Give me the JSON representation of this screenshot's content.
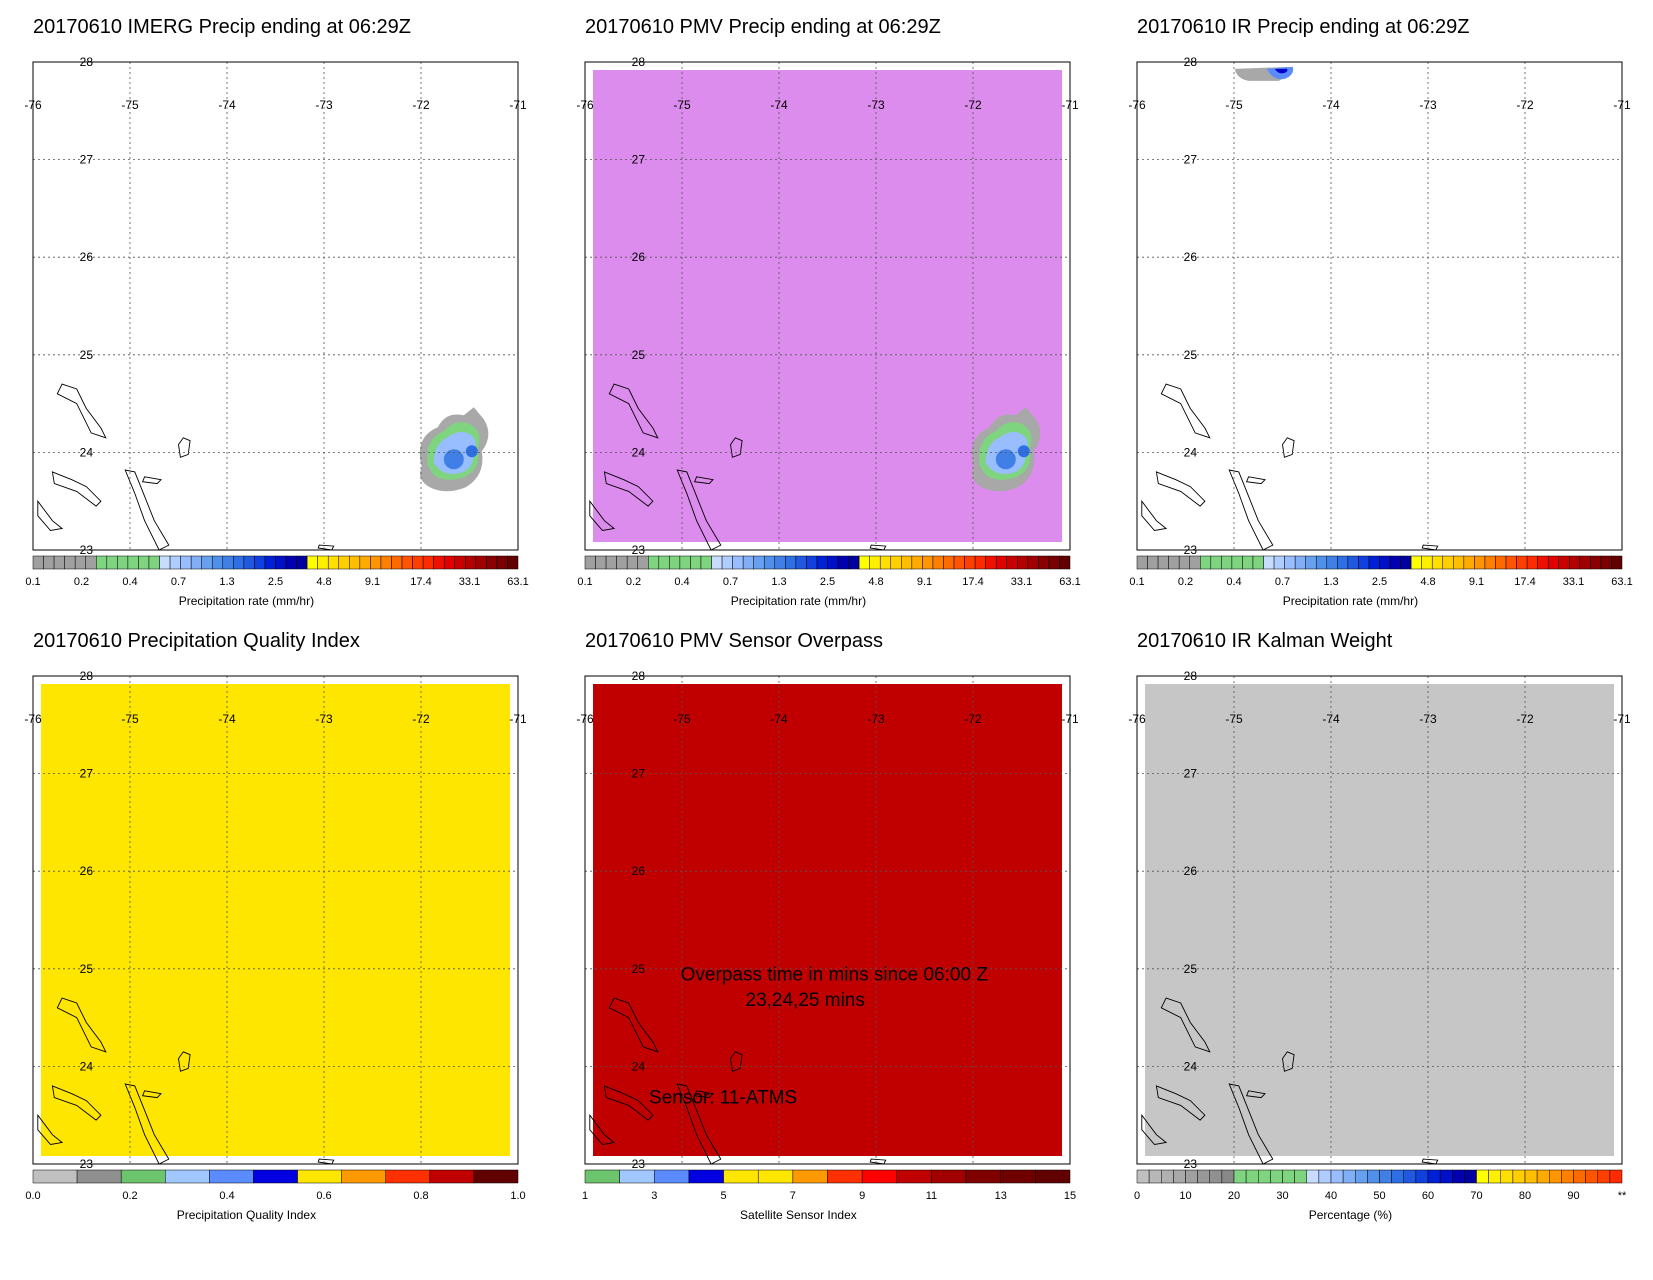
{
  "map": {
    "lon_ticks": [
      -76,
      -75,
      -74,
      -73,
      -72,
      -71
    ],
    "lat_ticks": [
      28,
      27,
      26,
      25,
      24,
      23
    ],
    "lon_range": [
      -76,
      -71
    ],
    "lat_range": [
      23,
      28
    ]
  },
  "panels": [
    {
      "title": "20170610 IMERG Precip ending at 06:29Z",
      "fill": "none",
      "precip_blob": {
        "lon": -71.6,
        "lat": 23.95
      },
      "colorbar": {
        "label": "Precipitation rate (mm/hr)",
        "tick_labels": [
          "0.1",
          "0.2",
          "0.4",
          "0.7",
          "1.3",
          "2.5",
          "4.8",
          "9.1",
          "17.4",
          "33.1",
          "63.1"
        ],
        "colors": [
          "#a0a0a0",
          "#a0a0a0",
          "#a0a0a0",
          "#a0a0a0",
          "#a0a0a0",
          "#a0a0a0",
          "#7fd47f",
          "#7fd47f",
          "#7fd47f",
          "#7fd47f",
          "#7fd47f",
          "#7fd47f",
          "#c8dcff",
          "#b0cdff",
          "#98beff",
          "#80aff5",
          "#68a0f0",
          "#5090eb",
          "#3f7fe6",
          "#2f6fe6",
          "#2058e0",
          "#1040e0",
          "#0020d8",
          "#0010c8",
          "#0000b0",
          "#0000a0",
          "#ffff00",
          "#ffef00",
          "#ffdf00",
          "#ffcf00",
          "#ffbf00",
          "#ffaa00",
          "#ff9500",
          "#ff8000",
          "#ff6a00",
          "#ff5500",
          "#ff3f00",
          "#ff2a00",
          "#f01000",
          "#e00000",
          "#c80000",
          "#b40000",
          "#a00000",
          "#8a0000",
          "#780000",
          "#600000"
        ]
      }
    },
    {
      "title": "20170610 PMV Precip ending at 06:29Z",
      "fill": "#dc8cec",
      "precip_blob": {
        "lon": -71.6,
        "lat": 23.95
      },
      "colorbar": {
        "label": "Precipitation rate (mm/hr)",
        "tick_labels": [
          "0.1",
          "0.2",
          "0.4",
          "0.7",
          "1.3",
          "2.5",
          "4.8",
          "9.1",
          "17.4",
          "33.1",
          "63.1"
        ],
        "colors": [
          "#a0a0a0",
          "#a0a0a0",
          "#a0a0a0",
          "#a0a0a0",
          "#a0a0a0",
          "#a0a0a0",
          "#7fd47f",
          "#7fd47f",
          "#7fd47f",
          "#7fd47f",
          "#7fd47f",
          "#7fd47f",
          "#c8dcff",
          "#b0cdff",
          "#98beff",
          "#80aff5",
          "#68a0f0",
          "#5090eb",
          "#3f7fe6",
          "#2f6fe6",
          "#2058e0",
          "#1040e0",
          "#0020d8",
          "#0010c8",
          "#0000b0",
          "#0000a0",
          "#ffff00",
          "#ffef00",
          "#ffdf00",
          "#ffcf00",
          "#ffbf00",
          "#ffaa00",
          "#ff9500",
          "#ff8000",
          "#ff6a00",
          "#ff5500",
          "#ff3f00",
          "#ff2a00",
          "#f01000",
          "#e00000",
          "#c80000",
          "#b40000",
          "#a00000",
          "#8a0000",
          "#780000",
          "#600000"
        ]
      }
    },
    {
      "title": "20170610 IR Precip ending at 06:29Z",
      "fill": "none",
      "precip_blob_top": {
        "lon": -74.6,
        "lat": 27.95
      },
      "colorbar": {
        "label": "Precipitation rate (mm/hr)",
        "tick_labels": [
          "0.1",
          "0.2",
          "0.4",
          "0.7",
          "1.3",
          "2.5",
          "4.8",
          "9.1",
          "17.4",
          "33.1",
          "63.1"
        ],
        "colors": [
          "#a0a0a0",
          "#a0a0a0",
          "#a0a0a0",
          "#a0a0a0",
          "#a0a0a0",
          "#a0a0a0",
          "#7fd47f",
          "#7fd47f",
          "#7fd47f",
          "#7fd47f",
          "#7fd47f",
          "#7fd47f",
          "#c8dcff",
          "#b0cdff",
          "#98beff",
          "#80aff5",
          "#68a0f0",
          "#5090eb",
          "#3f7fe6",
          "#2f6fe6",
          "#2058e0",
          "#1040e0",
          "#0020d8",
          "#0010c8",
          "#0000b0",
          "#0000a0",
          "#ffff00",
          "#ffef00",
          "#ffdf00",
          "#ffcf00",
          "#ffbf00",
          "#ffaa00",
          "#ff9500",
          "#ff8000",
          "#ff6a00",
          "#ff5500",
          "#ff3f00",
          "#ff2a00",
          "#f01000",
          "#e00000",
          "#c80000",
          "#b40000",
          "#a00000",
          "#8a0000",
          "#780000",
          "#600000"
        ]
      }
    },
    {
      "title": "20170610 Precipitation Quality Index",
      "fill": "#ffe600",
      "colorbar": {
        "label": "Precipitation Quality Index",
        "tick_labels": [
          "0.0",
          "0.2",
          "0.4",
          "0.6",
          "0.8",
          "1.0"
        ],
        "colors": [
          "#c0c0c0",
          "#909090",
          "#6cc46c",
          "#a0c8ff",
          "#5a8cff",
          "#0000e0",
          "#ffe600",
          "#ff9900",
          "#ff3000",
          "#c00000",
          "#600000"
        ]
      }
    },
    {
      "title": "20170610 PMV Sensor Overpass",
      "fill": "#c00000",
      "annotation": {
        "line1": "Overpass time in mins since 06:00 Z",
        "line2": "23,24,25 mins",
        "line3": "Sensor:  11-ATMS"
      },
      "colorbar": {
        "label": "Satellite Sensor Index",
        "tick_labels": [
          "1",
          "3",
          "5",
          "7",
          "9",
          "11",
          "13",
          "15"
        ],
        "colors": [
          "#6cc46c",
          "#a0c8ff",
          "#5a8cff",
          "#0000e0",
          "#ffe600",
          "#ffe600",
          "#ff9900",
          "#ff3000",
          "#ff0000",
          "#c00000",
          "#a00000",
          "#800000",
          "#700000",
          "#600000"
        ]
      }
    },
    {
      "title": "20170610 IR Kalman Weight",
      "fill": "#c6c6c6",
      "colorbar": {
        "label": "Percentage (%)",
        "tick_labels": [
          "0",
          "10",
          "20",
          "30",
          "40",
          "50",
          "60",
          "70",
          "80",
          "90",
          "**"
        ],
        "colors": [
          "#c0c0c0",
          "#b8b8b8",
          "#b0b0b0",
          "#a8a8a8",
          "#a0a0a0",
          "#989898",
          "#909090",
          "#888888",
          "#7fd47f",
          "#7fd47f",
          "#7fd47f",
          "#7fd47f",
          "#7fd47f",
          "#7fd47f",
          "#c8dcff",
          "#b0cdff",
          "#98beff",
          "#80aff5",
          "#68a0f0",
          "#5090eb",
          "#3f7fe6",
          "#2f6fe6",
          "#2058e0",
          "#1040e0",
          "#0020d8",
          "#0010c8",
          "#0000b0",
          "#0000a0",
          "#ffff00",
          "#ffef00",
          "#ffdf00",
          "#ffcf00",
          "#ffbf00",
          "#ffaa00",
          "#ff9500",
          "#ff8000",
          "#ff6a00",
          "#ff5500",
          "#ff3f00",
          "#ff2a00"
        ]
      }
    }
  ],
  "chart_data": [
    {
      "type": "heatmap",
      "title": "20170610 IMERG Precip ending at 06:29Z",
      "xlim": [
        -76,
        -71
      ],
      "ylim": [
        23,
        28
      ],
      "colorbar_label": "Precipitation rate (mm/hr)",
      "colorbar_ticks": [
        0.1,
        0.2,
        0.4,
        0.7,
        1.3,
        2.5,
        4.8,
        9.1,
        17.4,
        33.1,
        63.1
      ],
      "grid": true
    },
    {
      "type": "heatmap",
      "title": "20170610 PMV Precip ending at 06:29Z",
      "xlim": [
        -76,
        -71
      ],
      "ylim": [
        23,
        28
      ],
      "colorbar_label": "Precipitation rate (mm/hr)",
      "colorbar_ticks": [
        0.1,
        0.2,
        0.4,
        0.7,
        1.3,
        2.5,
        4.8,
        9.1,
        17.4,
        33.1,
        63.1
      ],
      "grid": true
    },
    {
      "type": "heatmap",
      "title": "20170610 IR Precip ending at 06:29Z",
      "xlim": [
        -76,
        -71
      ],
      "ylim": [
        23,
        28
      ],
      "colorbar_label": "Precipitation rate (mm/hr)",
      "colorbar_ticks": [
        0.1,
        0.2,
        0.4,
        0.7,
        1.3,
        2.5,
        4.8,
        9.1,
        17.4,
        33.1,
        63.1
      ],
      "grid": true
    },
    {
      "type": "heatmap",
      "title": "20170610 Precipitation Quality Index",
      "xlim": [
        -76,
        -71
      ],
      "ylim": [
        23,
        28
      ],
      "colorbar_label": "Precipitation Quality Index",
      "colorbar_ticks": [
        0.0,
        0.2,
        0.4,
        0.6,
        0.8,
        1.0
      ],
      "grid": true
    },
    {
      "type": "heatmap",
      "title": "20170610 PMV Sensor Overpass",
      "xlim": [
        -76,
        -71
      ],
      "ylim": [
        23,
        28
      ],
      "colorbar_label": "Satellite Sensor Index",
      "colorbar_ticks": [
        1,
        3,
        5,
        7,
        9,
        11,
        13,
        15
      ],
      "grid": true
    },
    {
      "type": "heatmap",
      "title": "20170610 IR Kalman Weight",
      "xlim": [
        -76,
        -71
      ],
      "ylim": [
        23,
        28
      ],
      "colorbar_label": "Percentage (%)",
      "colorbar_ticks": [
        0,
        10,
        20,
        30,
        40,
        50,
        60,
        70,
        80,
        90
      ],
      "grid": true
    }
  ]
}
